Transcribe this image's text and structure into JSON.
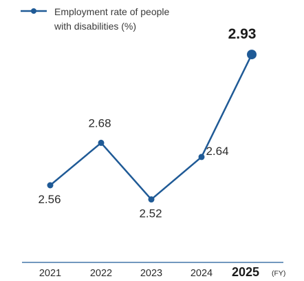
{
  "chart_data": {
    "type": "line",
    "categories": [
      "2021",
      "2022",
      "2023",
      "2024",
      "2025"
    ],
    "series": [
      {
        "name": "Employment rate of people with disabilities (%)",
        "name_lines": [
          "Employment rate of people",
          "with disabilities (%)"
        ],
        "values": [
          2.56,
          2.68,
          2.52,
          2.64,
          2.93
        ],
        "labels": [
          "2.56",
          "2.68",
          "2.52",
          "2.64",
          "2.93"
        ]
      }
    ],
    "x_unit": "(FY)",
    "highlight_category": "2025",
    "line_color": "#1f5a96",
    "axis_color": "#1f5a96",
    "legend_position": "top-left"
  }
}
